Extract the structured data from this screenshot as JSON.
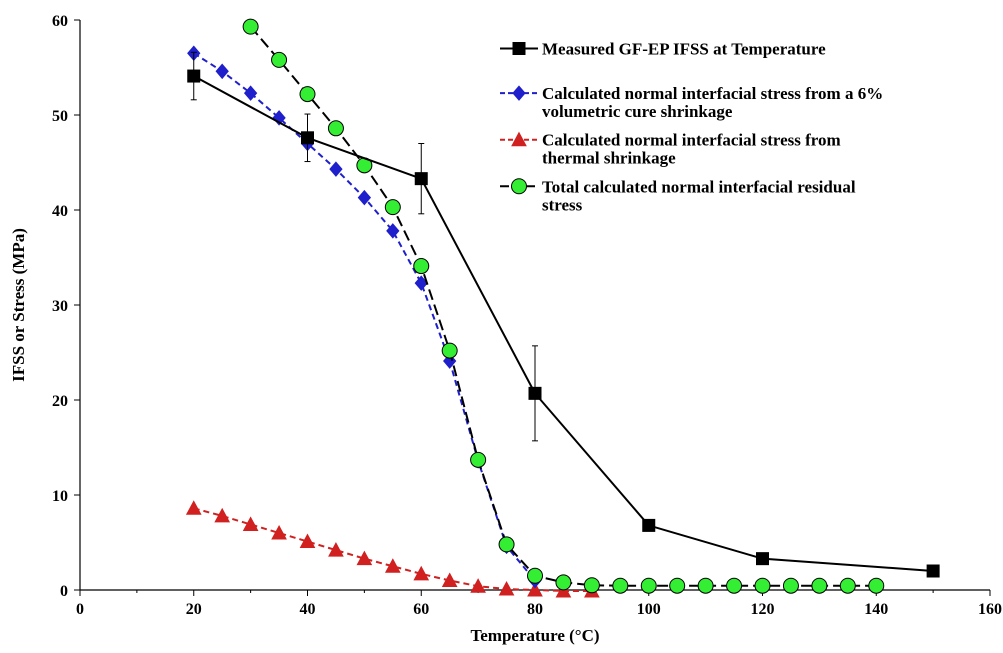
{
  "chart_data": {
    "type": "line",
    "xlabel": "Temperature (°C)",
    "ylabel": "IFSS or Stress (MPa)",
    "xlim": [
      0,
      160
    ],
    "ylim": [
      0,
      60
    ],
    "x_ticks": [
      0,
      20,
      40,
      60,
      80,
      100,
      120,
      140,
      160
    ],
    "y_ticks": [
      0,
      10,
      20,
      30,
      40,
      50,
      60
    ],
    "grid": false,
    "legend_position": "top-right",
    "series": [
      {
        "name": "Measured GF-EP IFSS at Temperature",
        "color": "#000000",
        "marker": "square",
        "line": "solid",
        "x": [
          20,
          40,
          60,
          80,
          100,
          120,
          150
        ],
        "y": [
          54.1,
          47.6,
          43.3,
          20.7,
          6.8,
          3.3,
          2.0
        ],
        "error": [
          2.5,
          2.5,
          3.7,
          5.0,
          0,
          0,
          0
        ]
      },
      {
        "name": "Calculated normal interfacial stress from a 6% volumetric cure shrinkage",
        "legend_lines": [
          "Calculated normal interfacial stress from a 6%",
          "volumetric cure shrinkage"
        ],
        "color": "#1f1fcc",
        "marker": "diamond",
        "line": "dashed",
        "x": [
          20,
          25,
          30,
          35,
          40,
          45,
          50,
          55,
          60,
          65,
          70,
          75,
          80
        ],
        "y": [
          56.5,
          54.6,
          52.3,
          49.7,
          47.0,
          44.3,
          41.3,
          37.8,
          32.3,
          24.1,
          13.6,
          4.6,
          1.0
        ]
      },
      {
        "name": "Calculated normal interfacial stress from thermal shrinkage",
        "legend_lines": [
          "Calculated normal interfacial stress from",
          "thermal shrinkage"
        ],
        "color": "#d02020",
        "marker": "triangle",
        "line": "dashed",
        "x": [
          20,
          25,
          30,
          35,
          40,
          45,
          50,
          55,
          60,
          65,
          70,
          75,
          80,
          85,
          90
        ],
        "y": [
          8.6,
          7.8,
          6.9,
          6.0,
          5.1,
          4.2,
          3.3,
          2.5,
          1.7,
          1.0,
          0.4,
          0.1,
          0.0,
          -0.1,
          -0.1
        ]
      },
      {
        "name": "Total calculated normal interfacial residual stress",
        "legend_lines": [
          "Total calculated normal interfacial residual",
          "stress"
        ],
        "color": "#000000",
        "fill": "#33ee33",
        "marker": "circle",
        "line": "longdash",
        "x": [
          30,
          35,
          40,
          45,
          50,
          55,
          60,
          65,
          70,
          75,
          80,
          85,
          90,
          95,
          100,
          105,
          110,
          115,
          120,
          125,
          130,
          135,
          140
        ],
        "y": [
          59.3,
          55.8,
          52.2,
          48.6,
          44.7,
          40.3,
          34.1,
          25.2,
          13.7,
          4.8,
          1.5,
          0.8,
          0.5,
          0.45,
          0.45,
          0.45,
          0.45,
          0.45,
          0.45,
          0.45,
          0.45,
          0.45,
          0.45
        ]
      }
    ]
  }
}
